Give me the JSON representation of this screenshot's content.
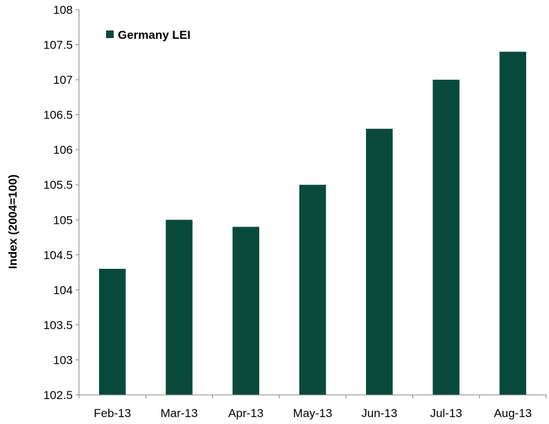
{
  "chart_data": {
    "type": "bar",
    "categories": [
      "Feb-13",
      "Mar-13",
      "Apr-13",
      "May-13",
      "Jun-13",
      "Jul-13",
      "Aug-13"
    ],
    "series": [
      {
        "name": "Germany LEI",
        "values": [
          104.3,
          105.0,
          104.9,
          105.5,
          106.3,
          107.0,
          107.4
        ],
        "color": "#0a4a3c"
      }
    ],
    "title": "",
    "xlabel": "",
    "ylabel": "Index (2004=100)",
    "ylim": [
      102.5,
      108
    ],
    "yticks": [
      102.5,
      103,
      103.5,
      104,
      104.5,
      105,
      105.5,
      106,
      106.5,
      107,
      107.5,
      108
    ],
    "ytick_labels": [
      "102.5",
      "103",
      "103.5",
      "104",
      "104.5",
      "105",
      "105.5",
      "106",
      "106.5",
      "107",
      "107.5",
      "108"
    ],
    "grid": false,
    "legend_position": "top-left",
    "axis_color": "#808080"
  }
}
